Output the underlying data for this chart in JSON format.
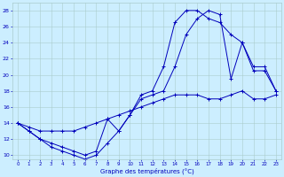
{
  "line1_x": [
    0,
    1,
    2,
    3,
    4,
    5,
    6,
    7,
    8,
    9,
    10,
    11,
    12,
    13,
    14,
    15,
    16,
    17,
    18,
    19,
    20,
    21,
    22,
    23
  ],
  "line1_y": [
    14,
    13,
    12,
    11,
    10.5,
    10,
    9.5,
    10,
    11.5,
    13,
    15,
    17.5,
    18,
    21,
    26.5,
    28,
    28,
    27,
    26.5,
    25,
    24,
    20.5,
    20.5,
    18
  ],
  "line2_x": [
    0,
    1,
    2,
    3,
    4,
    5,
    6,
    7,
    8,
    9,
    10,
    11,
    12,
    13,
    14,
    15,
    16,
    17,
    18,
    19,
    20,
    21,
    22,
    23
  ],
  "line2_y": [
    14,
    13,
    12,
    11.5,
    11,
    10.5,
    10,
    10.5,
    14.5,
    13,
    15,
    17,
    17.5,
    18,
    21,
    25,
    27,
    28,
    27.5,
    19.5,
    24,
    21,
    21,
    18
  ],
  "line3_x": [
    0,
    1,
    2,
    3,
    4,
    5,
    6,
    7,
    8,
    9,
    10,
    11,
    12,
    13,
    14,
    15,
    16,
    17,
    18,
    19,
    20,
    21,
    22,
    23
  ],
  "line3_y": [
    14,
    13.5,
    13,
    13,
    13,
    13,
    13.5,
    14,
    14.5,
    15,
    15.5,
    16,
    16.5,
    17,
    17.5,
    17.5,
    17.5,
    17,
    17,
    17.5,
    18,
    17,
    17,
    17.5
  ],
  "xlim": [
    -0.5,
    23.5
  ],
  "ylim": [
    9.5,
    29.0
  ],
  "yticks": [
    10,
    12,
    14,
    16,
    18,
    20,
    22,
    24,
    26,
    28
  ],
  "xticks": [
    0,
    1,
    2,
    3,
    4,
    5,
    6,
    7,
    8,
    9,
    10,
    11,
    12,
    13,
    14,
    15,
    16,
    17,
    18,
    19,
    20,
    21,
    22,
    23
  ],
  "xlabel": "Graphe des températures (°C)",
  "bg_color": "#cceeff",
  "grid_color": "#aacccc",
  "line_color": "#0000bb",
  "tick_color": "#0000bb",
  "label_color": "#0000bb"
}
